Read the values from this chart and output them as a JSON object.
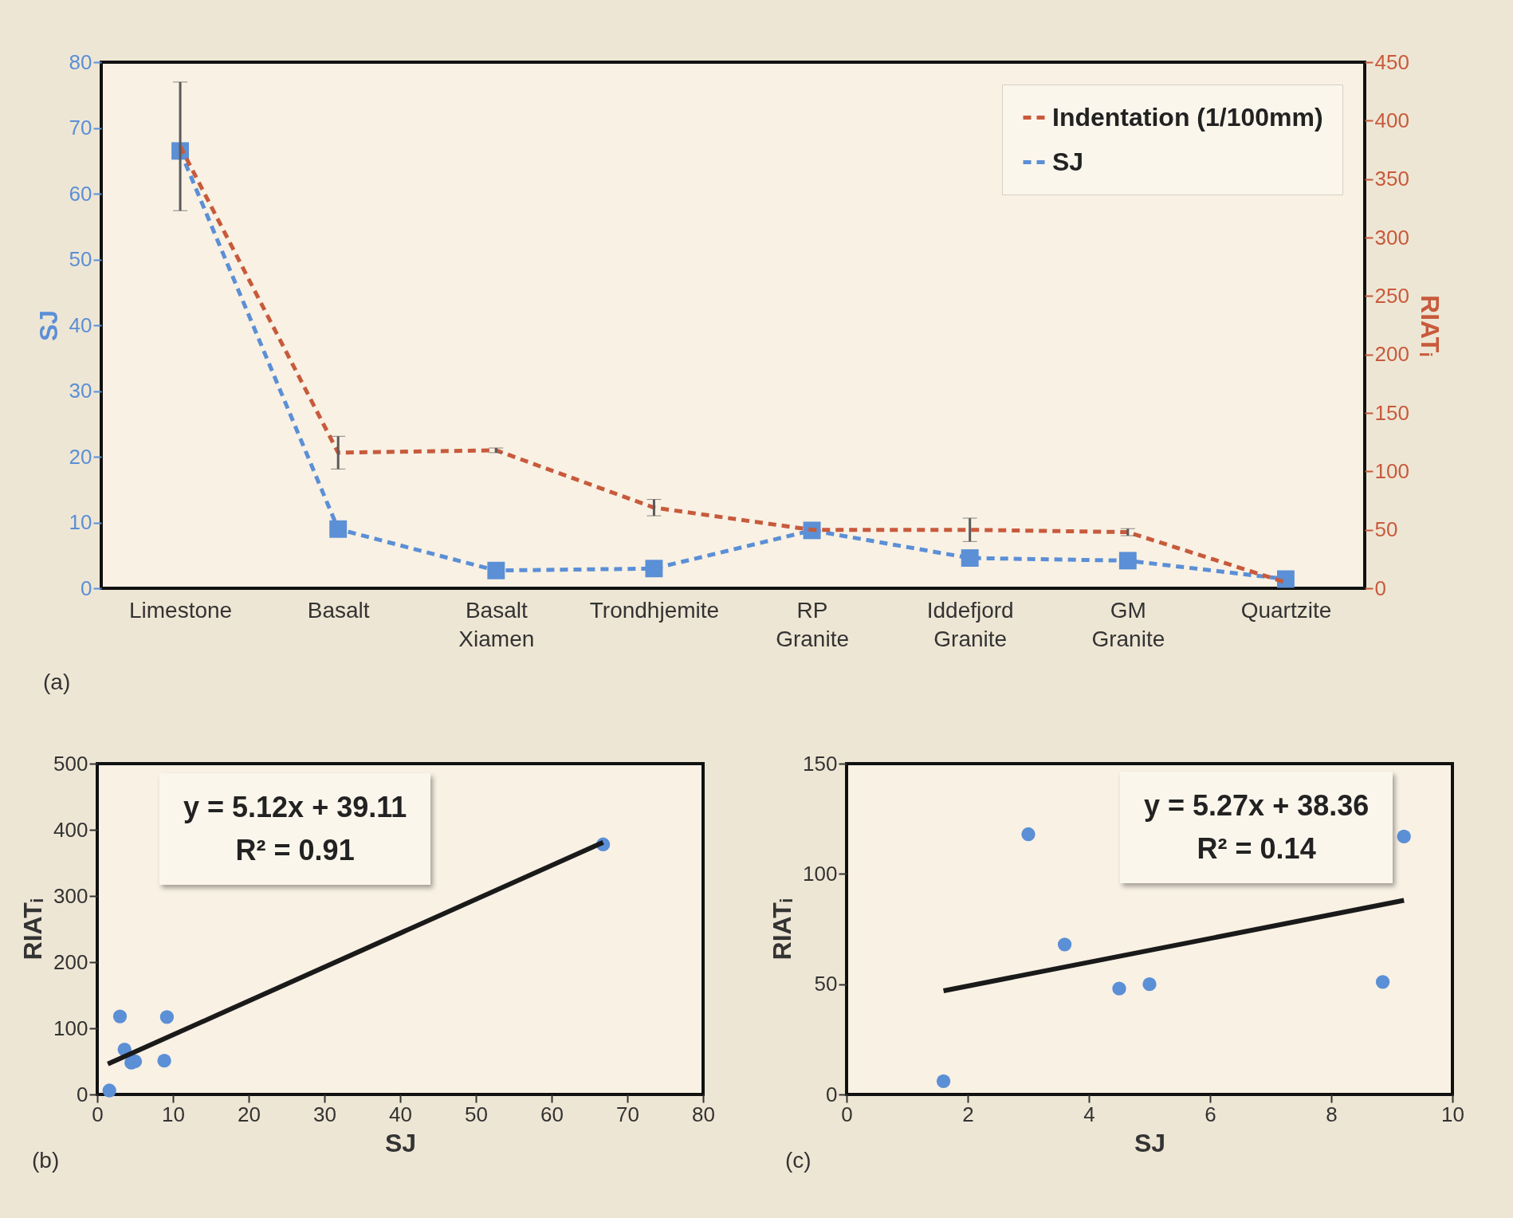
{
  "chart_data": [
    {
      "type": "line",
      "categories": [
        "Limestone",
        "Basalt",
        "Basalt Xiamen",
        "Trondhjemite",
        "RP Granite",
        "Iddefjord Granite",
        "GM Granite",
        "Quartzite"
      ],
      "ylabel": "SJ",
      "y2label": "RIATᵢ",
      "ylim": [
        0,
        80
      ],
      "yticks": [
        0,
        10,
        20,
        30,
        40,
        50,
        60,
        70,
        80
      ],
      "y2lim": [
        0,
        450
      ],
      "y2ticks": [
        0,
        50,
        100,
        150,
        200,
        250,
        300,
        350,
        400,
        450
      ],
      "legend": "top right",
      "line_style": "dashed",
      "series": [
        {
          "name": "Indentation (1/100mm)",
          "color": "#c85a3c",
          "axis": "y2",
          "marker": "none",
          "values": [
            378,
            116,
            118,
            69,
            50,
            50,
            48,
            5
          ],
          "errors": [
            55,
            14,
            2,
            7,
            null,
            10,
            3,
            null
          ]
        },
        {
          "name": "SJ",
          "color": "#5b8fd6",
          "axis": "y",
          "marker": "square",
          "values": [
            66.5,
            9,
            2.7,
            3,
            8.8,
            4.6,
            4.2,
            1.4
          ]
        }
      ],
      "annotations": [
        "(a)"
      ]
    },
    {
      "type": "scatter",
      "xlabel": "SJ",
      "ylabel": "RIATᵢ",
      "xlim": [
        0,
        80
      ],
      "xticks": [
        0,
        10,
        20,
        30,
        40,
        50,
        60,
        70,
        80
      ],
      "ylim": [
        0,
        500
      ],
      "yticks": [
        0,
        100,
        200,
        300,
        400,
        500
      ],
      "series": [
        {
          "type": "scatter",
          "marker": "circle",
          "color": "#5b8fd6",
          "x": [
            1.6,
            3,
            3.6,
            4.5,
            5,
            8.85,
            9.2,
            66.8
          ],
          "values": [
            6,
            118,
            68,
            48,
            50,
            51,
            117,
            378
          ]
        },
        {
          "type": "line",
          "marker": "none",
          "line_style": "solid",
          "color": "#1a1a1a",
          "x": [
            1.4,
            66.8
          ],
          "values": [
            46,
            381
          ]
        }
      ],
      "annotations": [
        "y = 5.12x + 39.11",
        "R² = 0.91",
        "(b)"
      ]
    },
    {
      "type": "scatter",
      "xlabel": "SJ",
      "ylabel": "RIATᵢ",
      "xlim": [
        0,
        10
      ],
      "xticks": [
        0,
        2,
        4,
        6,
        8,
        10
      ],
      "ylim": [
        0,
        150
      ],
      "yticks": [
        0,
        50,
        100,
        150
      ],
      "series": [
        {
          "type": "scatter",
          "marker": "circle",
          "color": "#5b8fd6",
          "x": [
            1.6,
            3,
            3.6,
            4.5,
            5,
            8.85,
            9.2
          ],
          "values": [
            6,
            118,
            68,
            48,
            50,
            51,
            117
          ]
        },
        {
          "type": "line",
          "marker": "none",
          "line_style": "solid",
          "color": "#1a1a1a",
          "x": [
            1.6,
            9.2
          ],
          "values": [
            47,
            88
          ]
        }
      ],
      "annotations": [
        "y = 5.27x + 38.36",
        "R² = 0.14",
        "(c)"
      ]
    }
  ]
}
